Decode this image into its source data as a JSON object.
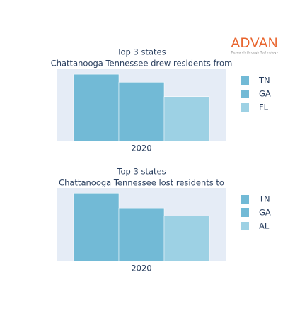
{
  "logo": {
    "name": "ADVAN",
    "tagline": "Research through Technology"
  },
  "chart_data": [
    {
      "type": "bar",
      "title": "Top 3 states",
      "subtitle": "Chattanooga Tennessee drew residents from",
      "categories": [
        "2020"
      ],
      "series": [
        {
          "name": "TN",
          "color": "#72bad6",
          "values": [
            93
          ]
        },
        {
          "name": "GA",
          "color": "#72bad6",
          "values": [
            82
          ]
        },
        {
          "name": "FL",
          "color": "#9dd1e4",
          "values": [
            62
          ]
        }
      ],
      "ylim": [
        0,
        100
      ],
      "legend": "right"
    },
    {
      "type": "bar",
      "title": "Top 3 states",
      "subtitle": "Chattanooga Tennessee lost residents to",
      "categories": [
        "2020"
      ],
      "series": [
        {
          "name": "TN",
          "color": "#72bad6",
          "values": [
            93
          ]
        },
        {
          "name": "GA",
          "color": "#72bad6",
          "values": [
            72
          ]
        },
        {
          "name": "AL",
          "color": "#9dd1e4",
          "values": [
            62
          ]
        }
      ],
      "ylim": [
        0,
        100
      ],
      "legend": "right"
    }
  ]
}
